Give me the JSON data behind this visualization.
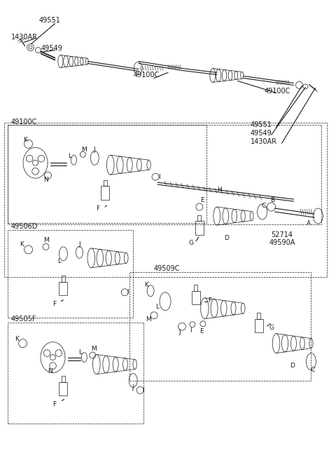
{
  "bg": "#ffffff",
  "lc": "#1a1a1a",
  "fig_w": 4.8,
  "fig_h": 6.56,
  "dpi": 100,
  "xlim": [
    0,
    480
  ],
  "ylim": [
    0,
    656
  ]
}
